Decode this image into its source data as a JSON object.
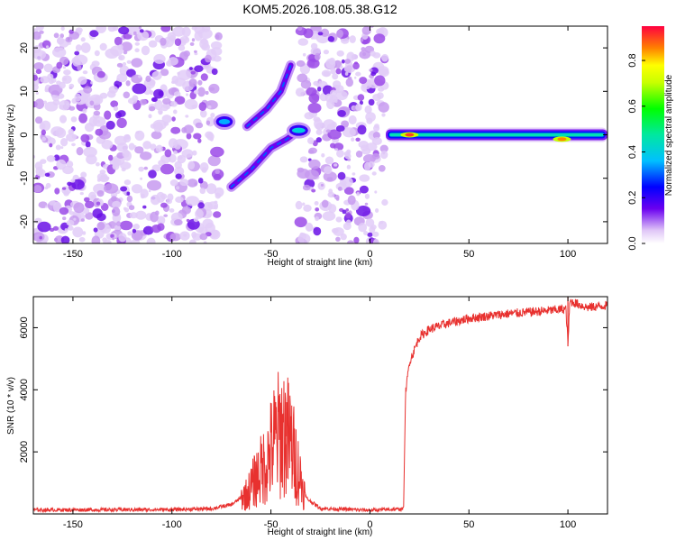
{
  "title": "KOM5.2026.108.05.38.G12",
  "chart_data": [
    {
      "type": "heatmap",
      "xlabel": "Height of straight line (km)",
      "ylabel": "Frequency (Hz)",
      "xlim": [
        -170,
        120
      ],
      "ylim": [
        -25,
        25
      ],
      "xticks": [
        -150,
        -100,
        -50,
        0,
        50,
        100
      ],
      "yticks": [
        -20,
        -10,
        0,
        10,
        20
      ],
      "colorbar": {
        "label": "Normalized spectral amplitude",
        "range": [
          0,
          0.95
        ],
        "ticks": [
          "0.0",
          "0.2",
          "0.4",
          "0.6",
          "0.8"
        ],
        "tick_values": [
          0.0,
          0.2,
          0.4,
          0.6,
          0.8
        ]
      },
      "noise_regions_km": [
        [
          -170,
          -76
        ],
        [
          -36,
          8
        ]
      ],
      "features": [
        {
          "name": "line-feature-upper",
          "x": [
            -62,
            -52,
            -45,
            -40
          ],
          "y": [
            2,
            6,
            10,
            16
          ],
          "amplitude": 0.3
        },
        {
          "name": "line-feature-lower",
          "x": [
            -70,
            -60,
            -50,
            -42,
            -36
          ],
          "y": [
            -12,
            -8,
            -3,
            -1,
            1
          ],
          "amplitude": 0.3
        },
        {
          "name": "blob-left",
          "x": [
            -75,
            -72
          ],
          "y": [
            3,
            3
          ],
          "amplitude": 0.35
        },
        {
          "name": "blob-right",
          "x": [
            -38,
            -34
          ],
          "y": [
            0,
            2
          ],
          "amplitude": 0.4
        },
        {
          "name": "band-zero",
          "x": [
            8,
            120
          ],
          "y": [
            0,
            0
          ],
          "amplitude": 0.45
        }
      ],
      "hotspots": [
        {
          "x": 20,
          "y": 0,
          "amplitude": 0.9
        },
        {
          "x": 97,
          "y": -1,
          "amplitude": 0.85
        }
      ]
    },
    {
      "type": "line",
      "xlabel": "Height of straight line (km)",
      "ylabel": "SNR (10 * v/v)",
      "xlim": [
        -170,
        120
      ],
      "ylim": [
        0,
        7000
      ],
      "xticks": [
        -150,
        -100,
        -50,
        0,
        50,
        100
      ],
      "yticks": [
        2000,
        4000,
        6000
      ],
      "series": [
        {
          "name": "SNR",
          "color": "#e8312f",
          "x": [
            -170,
            -100,
            -80,
            -70,
            -62,
            -58,
            -52,
            -48,
            -44,
            -40,
            -37,
            -34,
            -32,
            -25,
            0,
            17,
            18,
            20,
            25,
            30,
            40,
            50,
            60,
            70,
            80,
            90,
            99,
            100,
            101,
            110,
            120
          ],
          "y": [
            130,
            140,
            170,
            300,
            650,
            1100,
            1700,
            2400,
            2700,
            2300,
            1600,
            900,
            500,
            180,
            120,
            160,
            3900,
            4900,
            5700,
            5950,
            6150,
            6300,
            6380,
            6450,
            6500,
            6550,
            6600,
            5500,
            6850,
            6650,
            6720
          ]
        }
      ],
      "spikes": [
        {
          "x": -42,
          "y": 3600
        },
        {
          "x": -48,
          "y": 3300
        },
        {
          "x": 100,
          "y": 7000
        },
        {
          "x": 100,
          "y": 5400
        }
      ]
    }
  ]
}
